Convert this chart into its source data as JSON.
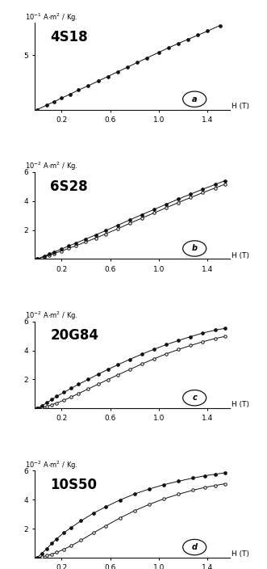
{
  "subplots": [
    {
      "label": "4S18",
      "letter": "a",
      "ylabel_exp": "-1",
      "ylim": [
        0,
        8
      ],
      "yticks": [
        5
      ],
      "ytick_labels": [
        "5"
      ],
      "induced_x": [
        0.0,
        0.08,
        0.14,
        0.2,
        0.27,
        0.34,
        0.42,
        0.5,
        0.58,
        0.66,
        0.74,
        0.82,
        0.9,
        1.0,
        1.08,
        1.16,
        1.24,
        1.32,
        1.4,
        1.5
      ],
      "induced_y": [
        0.0,
        0.42,
        0.74,
        1.05,
        1.42,
        1.8,
        2.2,
        2.62,
        3.05,
        3.48,
        3.9,
        4.33,
        4.75,
        5.28,
        5.7,
        6.1,
        6.48,
        6.86,
        7.24,
        7.75
      ],
      "remanent_x": [
        0.0,
        0.08,
        0.14,
        0.2,
        0.27,
        0.34,
        0.42,
        0.5,
        0.58,
        0.66,
        0.74,
        0.82,
        0.9,
        1.0,
        1.08,
        1.16,
        1.24,
        1.32,
        1.4,
        1.5
      ],
      "remanent_y": [
        0.0,
        0.42,
        0.74,
        1.05,
        1.42,
        1.8,
        2.2,
        2.62,
        3.05,
        3.48,
        3.9,
        4.33,
        4.75,
        5.28,
        5.7,
        6.1,
        6.48,
        6.86,
        7.24,
        7.75
      ],
      "hysteresis": false,
      "xticks": [
        0.2,
        0.6,
        1.0,
        1.4
      ],
      "xlim": [
        -0.02,
        1.58
      ]
    },
    {
      "label": "6S28",
      "letter": "b",
      "ylabel_exp": "-2",
      "ylim": [
        0,
        6
      ],
      "yticks": [
        2,
        4,
        6
      ],
      "ytick_labels": [
        "2",
        "4",
        "6"
      ],
      "induced_x": [
        0.0,
        0.06,
        0.1,
        0.14,
        0.2,
        0.26,
        0.32,
        0.4,
        0.48,
        0.56,
        0.66,
        0.76,
        0.86,
        0.96,
        1.06,
        1.16,
        1.26,
        1.36,
        1.46,
        1.54
      ],
      "induced_y": [
        0.0,
        0.2,
        0.34,
        0.48,
        0.68,
        0.9,
        1.1,
        1.38,
        1.66,
        1.95,
        2.32,
        2.7,
        3.06,
        3.42,
        3.78,
        4.14,
        4.48,
        4.82,
        5.14,
        5.4
      ],
      "remanent_x": [
        0.0,
        0.06,
        0.1,
        0.14,
        0.2,
        0.26,
        0.32,
        0.4,
        0.48,
        0.56,
        0.66,
        0.76,
        0.86,
        0.96,
        1.06,
        1.16,
        1.26,
        1.36,
        1.46,
        1.54
      ],
      "remanent_y": [
        0.0,
        0.15,
        0.26,
        0.38,
        0.55,
        0.73,
        0.92,
        1.18,
        1.44,
        1.72,
        2.08,
        2.46,
        2.82,
        3.18,
        3.54,
        3.9,
        4.24,
        4.58,
        4.9,
        5.16
      ],
      "hysteresis": true,
      "xticks": [
        0.2,
        0.6,
        1.0,
        1.4
      ],
      "xlim": [
        -0.02,
        1.58
      ]
    },
    {
      "label": "20G84",
      "letter": "c",
      "ylabel_exp": "-2",
      "ylim": [
        0,
        6
      ],
      "yticks": [
        2,
        4,
        6
      ],
      "ytick_labels": [
        "2",
        "4",
        "6"
      ],
      "induced_x": [
        0.0,
        0.04,
        0.08,
        0.12,
        0.16,
        0.22,
        0.28,
        0.34,
        0.42,
        0.5,
        0.58,
        0.66,
        0.76,
        0.86,
        0.96,
        1.06,
        1.16,
        1.26,
        1.36,
        1.46,
        1.54
      ],
      "induced_y": [
        0.0,
        0.18,
        0.38,
        0.6,
        0.82,
        1.1,
        1.38,
        1.66,
        2.0,
        2.35,
        2.68,
        3.0,
        3.38,
        3.74,
        4.08,
        4.4,
        4.68,
        4.95,
        5.2,
        5.4,
        5.52
      ],
      "remanent_x": [
        0.0,
        0.04,
        0.08,
        0.12,
        0.16,
        0.22,
        0.28,
        0.34,
        0.42,
        0.5,
        0.58,
        0.66,
        0.76,
        0.86,
        0.96,
        1.06,
        1.16,
        1.26,
        1.36,
        1.46,
        1.54
      ],
      "remanent_y": [
        0.0,
        0.06,
        0.14,
        0.24,
        0.36,
        0.56,
        0.78,
        1.02,
        1.34,
        1.66,
        1.98,
        2.3,
        2.68,
        3.06,
        3.42,
        3.76,
        4.06,
        4.34,
        4.6,
        4.82,
        4.96
      ],
      "hysteresis": true,
      "xticks": [
        0.2,
        0.6,
        1.0,
        1.4
      ],
      "xlim": [
        -0.02,
        1.58
      ]
    },
    {
      "label": "10S50",
      "letter": "d",
      "ylabel_exp": "-2",
      "ylim": [
        0,
        6
      ],
      "yticks": [
        2,
        4,
        6
      ],
      "ytick_labels": [
        "2",
        "4",
        "6"
      ],
      "induced_x": [
        0.0,
        0.04,
        0.08,
        0.12,
        0.16,
        0.22,
        0.28,
        0.36,
        0.46,
        0.56,
        0.68,
        0.8,
        0.92,
        1.04,
        1.16,
        1.28,
        1.38,
        1.46,
        1.54
      ],
      "induced_y": [
        0.0,
        0.3,
        0.62,
        0.98,
        1.3,
        1.72,
        2.08,
        2.54,
        3.06,
        3.5,
        3.98,
        4.4,
        4.74,
        5.04,
        5.28,
        5.5,
        5.66,
        5.76,
        5.86
      ],
      "remanent_x": [
        0.0,
        0.04,
        0.08,
        0.12,
        0.16,
        0.22,
        0.28,
        0.36,
        0.46,
        0.56,
        0.68,
        0.8,
        0.92,
        1.04,
        1.16,
        1.28,
        1.38,
        1.46,
        1.54
      ],
      "remanent_y": [
        0.0,
        0.06,
        0.14,
        0.24,
        0.36,
        0.58,
        0.82,
        1.2,
        1.7,
        2.18,
        2.74,
        3.24,
        3.68,
        4.06,
        4.38,
        4.66,
        4.86,
        4.98,
        5.1
      ],
      "hysteresis": true,
      "xticks": [
        0.2,
        0.6,
        1.0,
        1.4
      ],
      "xlim": [
        -0.02,
        1.58
      ]
    }
  ],
  "bg_color": "#ffffff",
  "line_color": "#111111",
  "marker_color": "#111111"
}
